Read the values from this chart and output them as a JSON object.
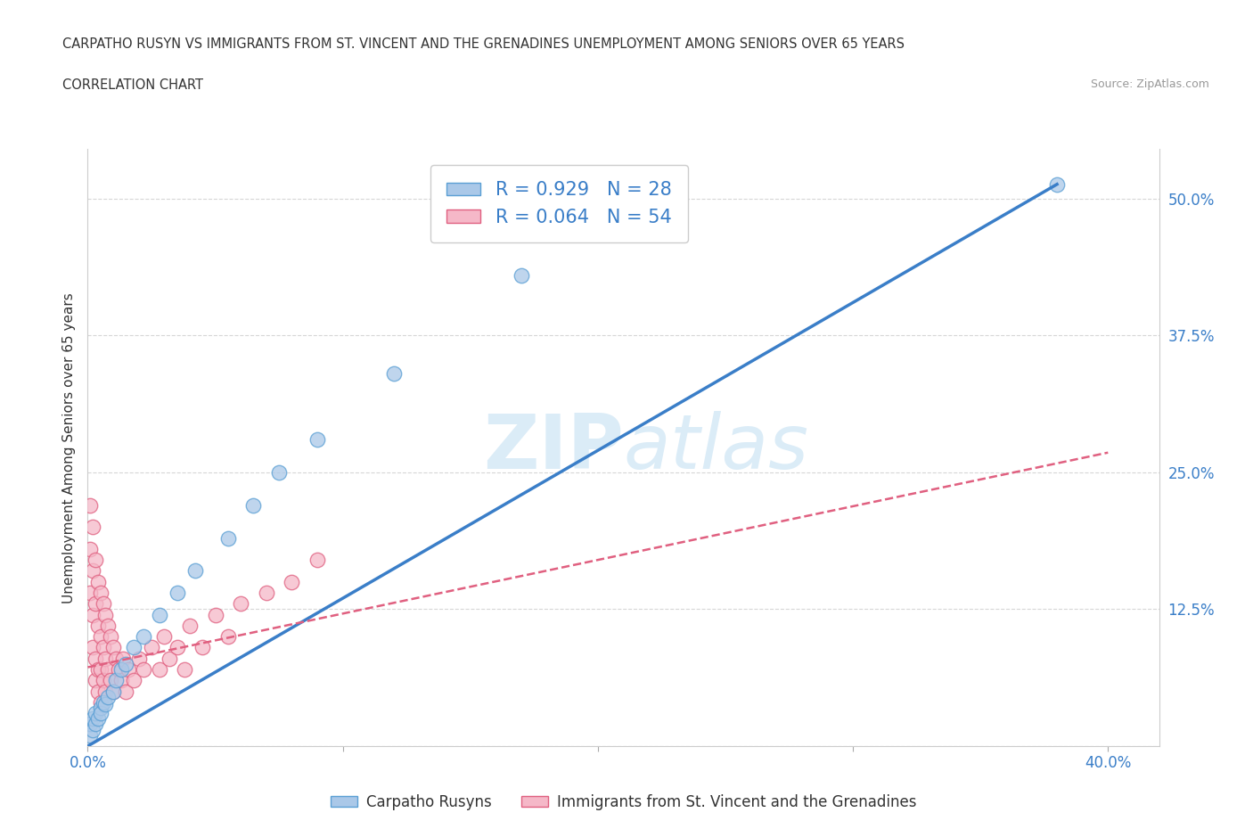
{
  "title_line1": "CARPATHO RUSYN VS IMMIGRANTS FROM ST. VINCENT AND THE GRENADINES UNEMPLOYMENT AMONG SENIORS OVER 65 YEARS",
  "title_line2": "CORRELATION CHART",
  "source_text": "Source: ZipAtlas.com",
  "ylabel": "Unemployment Among Seniors over 65 years",
  "xlim": [
    0.0,
    0.42
  ],
  "ylim": [
    0.0,
    0.545
  ],
  "xticks": [
    0.0,
    0.1,
    0.2,
    0.3,
    0.4
  ],
  "xticklabels": [
    "0.0%",
    "",
    "",
    "",
    "40.0%"
  ],
  "yticks": [
    0.0,
    0.125,
    0.25,
    0.375,
    0.5
  ],
  "yticklabels": [
    "",
    "12.5%",
    "25.0%",
    "37.5%",
    "50.0%"
  ],
  "group1_name": "Carpatho Rusyns",
  "group1_color": "#aac8e8",
  "group1_edge_color": "#5a9fd4",
  "group1_R": 0.929,
  "group1_N": 28,
  "group1_line_color": "#3a7ec8",
  "group2_name": "Immigrants from St. Vincent and the Grenadines",
  "group2_color": "#f5b8c8",
  "group2_edge_color": "#e06080",
  "group2_R": 0.064,
  "group2_N": 54,
  "group2_line_color": "#e06080",
  "watermark_zip": "ZIP",
  "watermark_atlas": "atlas",
  "background_color": "#ffffff",
  "grid_color": "#cccccc",
  "legend_text_color": "#3a7ec8",
  "blue_line_x0": 0.0,
  "blue_line_y0": 0.0,
  "blue_line_x1": 0.38,
  "blue_line_y1": 0.513,
  "pink_line_x0": 0.0,
  "pink_line_y0": 0.072,
  "pink_line_x1": 0.4,
  "pink_line_y1": 0.268,
  "group1_x": [
    0.001,
    0.001,
    0.002,
    0.002,
    0.003,
    0.003,
    0.004,
    0.005,
    0.005,
    0.006,
    0.007,
    0.008,
    0.01,
    0.011,
    0.013,
    0.015,
    0.018,
    0.022,
    0.028,
    0.035,
    0.042,
    0.055,
    0.065,
    0.075,
    0.09,
    0.12,
    0.17,
    0.38
  ],
  "group1_y": [
    0.01,
    0.02,
    0.015,
    0.025,
    0.02,
    0.03,
    0.025,
    0.035,
    0.03,
    0.04,
    0.038,
    0.045,
    0.05,
    0.06,
    0.07,
    0.075,
    0.09,
    0.1,
    0.12,
    0.14,
    0.16,
    0.19,
    0.22,
    0.25,
    0.28,
    0.34,
    0.43,
    0.513
  ],
  "group2_x": [
    0.001,
    0.001,
    0.001,
    0.002,
    0.002,
    0.002,
    0.002,
    0.003,
    0.003,
    0.003,
    0.003,
    0.004,
    0.004,
    0.004,
    0.004,
    0.005,
    0.005,
    0.005,
    0.005,
    0.006,
    0.006,
    0.006,
    0.007,
    0.007,
    0.007,
    0.008,
    0.008,
    0.009,
    0.009,
    0.01,
    0.01,
    0.011,
    0.012,
    0.013,
    0.014,
    0.015,
    0.016,
    0.018,
    0.02,
    0.022,
    0.025,
    0.028,
    0.03,
    0.032,
    0.035,
    0.038,
    0.04,
    0.045,
    0.05,
    0.055,
    0.06,
    0.07,
    0.08,
    0.09
  ],
  "group2_y": [
    0.18,
    0.22,
    0.14,
    0.2,
    0.16,
    0.12,
    0.09,
    0.17,
    0.13,
    0.08,
    0.06,
    0.15,
    0.11,
    0.07,
    0.05,
    0.14,
    0.1,
    0.07,
    0.04,
    0.13,
    0.09,
    0.06,
    0.12,
    0.08,
    0.05,
    0.11,
    0.07,
    0.1,
    0.06,
    0.09,
    0.05,
    0.08,
    0.07,
    0.06,
    0.08,
    0.05,
    0.07,
    0.06,
    0.08,
    0.07,
    0.09,
    0.07,
    0.1,
    0.08,
    0.09,
    0.07,
    0.11,
    0.09,
    0.12,
    0.1,
    0.13,
    0.14,
    0.15,
    0.17
  ]
}
